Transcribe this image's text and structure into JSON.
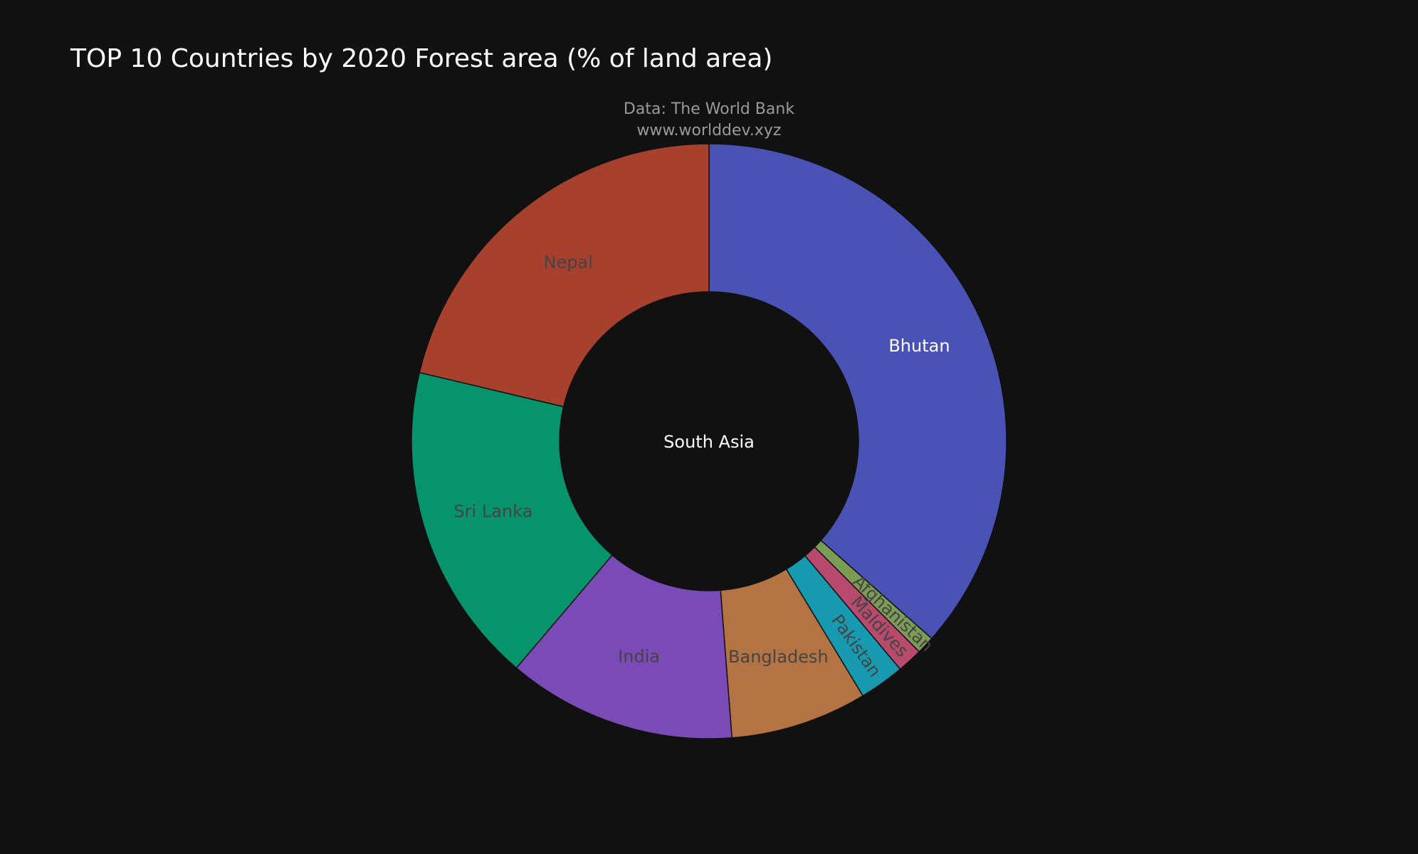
{
  "chart_data": {
    "type": "pie",
    "hole": true,
    "title": "TOP 10 Countries by 2020 Forest area (% of land area)",
    "center_label": "South Asia",
    "annotations": [
      "Data: The World Bank",
      "www.worlddev.xyz"
    ],
    "legend": "none",
    "direction": "clockwise",
    "slices": [
      {
        "label": "Bhutan",
        "value": 71.4,
        "color": "#4a52b6",
        "label_color": "#ffffff"
      },
      {
        "label": "Afghanistan",
        "value": 1.9,
        "color": "#7a9c55",
        "label_color": "#444444"
      },
      {
        "label": "Maldives",
        "value": 2.7,
        "color": "#b84a6e",
        "label_color": "#444444"
      },
      {
        "label": "Pakistan",
        "value": 4.8,
        "color": "#1799b0",
        "label_color": "#444444"
      },
      {
        "label": "Bangladesh",
        "value": 14.5,
        "color": "#b47342",
        "label_color": "#444444"
      },
      {
        "label": "India",
        "value": 24.3,
        "color": "#7a4ab6",
        "label_color": "#444444"
      },
      {
        "label": "Sri Lanka",
        "value": 34.2,
        "color": "#07936c",
        "label_color": "#444444"
      },
      {
        "label": "Nepal",
        "value": 41.6,
        "color": "#a8402e",
        "label_color": "#444444"
      }
    ]
  },
  "colors": {
    "background": "#111111",
    "title": "#ffffff",
    "annotation": "#9a9a9a",
    "slice_border": "#111111"
  }
}
